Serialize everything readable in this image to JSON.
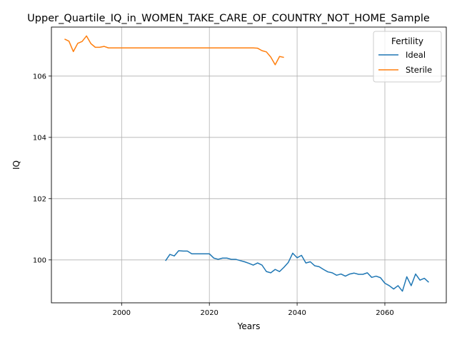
{
  "chart_data": {
    "type": "line",
    "title": "Upper_Quartile_IQ_in_WOMEN_TAKE_CARE_OF_COUNTRY_NOT_HOME_Sample",
    "xlabel": "Years",
    "ylabel": "IQ",
    "xlim": [
      1984,
      2074
    ],
    "ylim": [
      98.6,
      107.6
    ],
    "xticks": [
      2000,
      2020,
      2040,
      2060
    ],
    "yticks": [
      100,
      102,
      104,
      106
    ],
    "grid": true,
    "legend": {
      "title": "Fertility",
      "position": "top-right"
    },
    "series": [
      {
        "name": "Ideal",
        "color": "#1f77b4",
        "x": [
          2010,
          2011,
          2012,
          2013,
          2014,
          2015,
          2016,
          2017,
          2018,
          2019,
          2020,
          2021,
          2022,
          2023,
          2024,
          2025,
          2026,
          2027,
          2028,
          2029,
          2030,
          2031,
          2032,
          2033,
          2034,
          2035,
          2036,
          2037,
          2038,
          2039,
          2040,
          2041,
          2042,
          2043,
          2044,
          2045,
          2046,
          2047,
          2048,
          2049,
          2050,
          2051,
          2052,
          2053,
          2054,
          2055,
          2056,
          2057,
          2058,
          2059,
          2060,
          2061,
          2062,
          2063,
          2064,
          2065,
          2066,
          2067,
          2068,
          2069,
          2070
        ],
        "y": [
          99.97,
          100.18,
          100.13,
          100.3,
          100.29,
          100.29,
          100.2,
          100.2,
          100.2,
          100.2,
          100.2,
          100.06,
          100.02,
          100.06,
          100.06,
          100.02,
          100.02,
          99.98,
          99.94,
          99.89,
          99.83,
          99.9,
          99.83,
          99.62,
          99.58,
          99.69,
          99.62,
          99.76,
          99.92,
          100.22,
          100.07,
          100.15,
          99.9,
          99.94,
          99.81,
          99.78,
          99.69,
          99.61,
          99.58,
          99.5,
          99.54,
          99.47,
          99.54,
          99.57,
          99.53,
          99.53,
          99.58,
          99.43,
          99.47,
          99.42,
          99.24,
          99.16,
          99.05,
          99.16,
          98.98,
          99.45,
          99.16,
          99.54,
          99.34,
          99.4,
          99.27
        ]
      },
      {
        "name": "Sterile",
        "color": "#ff7f0e",
        "x": [
          1987,
          1988,
          1989,
          1990,
          1991,
          1992,
          1993,
          1994,
          1995,
          1996,
          1997,
          1998,
          2000,
          2005,
          2010,
          2015,
          2020,
          2025,
          2030,
          2031,
          2032,
          2033,
          2034,
          2035,
          2036,
          2037
        ],
        "y": [
          107.21,
          107.14,
          106.8,
          107.07,
          107.13,
          107.31,
          107.06,
          106.94,
          106.94,
          106.97,
          106.92,
          106.92,
          106.92,
          106.92,
          106.92,
          106.92,
          106.92,
          106.92,
          106.92,
          106.91,
          106.83,
          106.79,
          106.62,
          106.37,
          106.64,
          106.61
        ]
      }
    ]
  }
}
